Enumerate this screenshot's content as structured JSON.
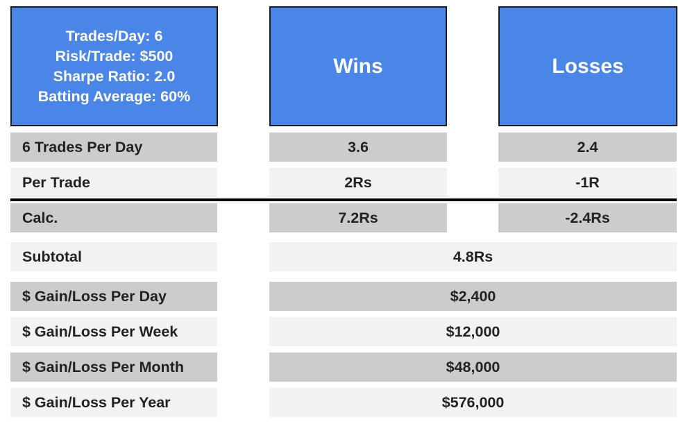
{
  "header": {
    "info_lines": [
      "Trades/Day: 6",
      "Risk/Trade: $500",
      "Sharpe Ratio: 2.0",
      "Batting Average: 60%"
    ],
    "wins_title": "Wins",
    "losses_title": "Losses"
  },
  "rows": {
    "trades_per_day": {
      "label": "6 Trades Per Day",
      "wins": "3.6",
      "losses": "2.4"
    },
    "per_trade": {
      "label": "Per Trade",
      "wins": "2Rs",
      "losses": "-1R"
    },
    "calc": {
      "label": "Calc.",
      "wins": "7.2Rs",
      "losses": "-2.4Rs"
    },
    "subtotal": {
      "label": "Subtotal",
      "value": "4.8Rs"
    },
    "per_day": {
      "label": "$ Gain/Loss Per Day",
      "value": "$2,400"
    },
    "per_week": {
      "label": "$ Gain/Loss Per Week",
      "value": "$12,000"
    },
    "per_month": {
      "label": "$ Gain/Loss Per Month",
      "value": "$48,000"
    },
    "per_year": {
      "label": "$ Gain/Loss Per Year",
      "value": "$576,000"
    }
  },
  "colors": {
    "header_blue": "#4a86e8",
    "row_dark": "#cccccc",
    "row_light": "#f2f2f2",
    "divider": "#000000"
  }
}
